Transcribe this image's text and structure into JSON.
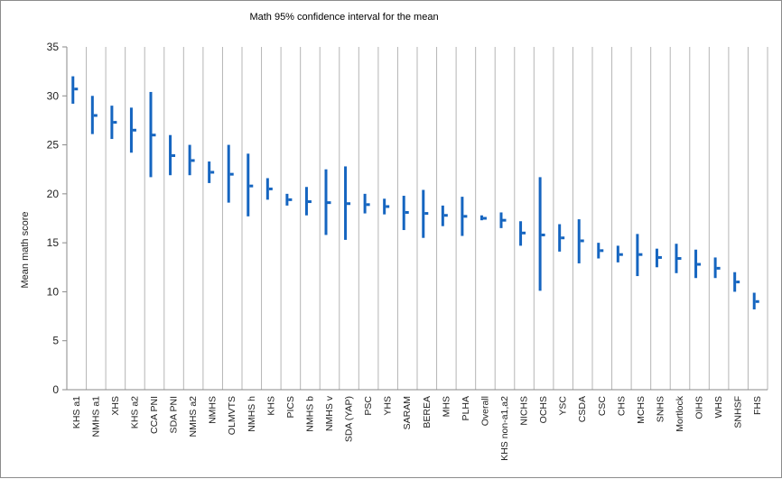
{
  "chart_data": {
    "type": "error-bar",
    "title": "Math 95% confidence interval for the mean",
    "ylabel": "Mean math score",
    "xlabel": "",
    "ylim": [
      0,
      35
    ],
    "yticks": [
      0,
      5,
      10,
      15,
      20,
      25,
      30,
      35
    ],
    "grid": "vertical",
    "categories": [
      "KHS a1",
      "NMHS a1",
      "XHS",
      "KHS a2",
      "CCA PNI",
      "SDA PNI",
      "NMHS a2",
      "NMHS",
      "OLMVTS",
      "NMHS h",
      "KHS",
      "PICS",
      "NMHS b",
      "NMHS v",
      "SDA (YAP)",
      "PSC",
      "YHS",
      "SARAM",
      "BEREA",
      "MHS",
      "PLHA",
      "Overall",
      "KHS non-a1,a2",
      "NICHS",
      "OCHS",
      "YSC",
      "CSDA",
      "CSC",
      "CHS",
      "MCHS",
      "SNHS",
      "Mortlock",
      "OIHS",
      "WHS",
      "SNHSF",
      "FHS"
    ],
    "series": [
      {
        "name": "",
        "low": [
          29.2,
          26.1,
          25.6,
          24.2,
          21.7,
          21.9,
          21.9,
          21.1,
          19.1,
          17.7,
          19.4,
          18.8,
          17.8,
          15.8,
          15.3,
          18.0,
          17.9,
          16.3,
          15.5,
          16.7,
          15.7,
          17.3,
          16.5,
          14.7,
          10.1,
          14.1,
          12.9,
          13.4,
          13.0,
          11.6,
          12.5,
          11.9,
          11.4,
          11.4,
          10.0,
          8.2
        ],
        "high": [
          32.0,
          30.0,
          29.0,
          28.8,
          30.4,
          26.0,
          25.0,
          23.3,
          25.0,
          24.1,
          21.6,
          20.0,
          20.7,
          22.5,
          22.8,
          20.0,
          19.5,
          19.8,
          20.4,
          18.8,
          19.7,
          17.8,
          18.1,
          17.2,
          21.7,
          16.9,
          17.4,
          15.0,
          14.7,
          15.9,
          14.4,
          14.9,
          14.3,
          13.5,
          12.0,
          9.9
        ],
        "mean": [
          30.7,
          28.0,
          27.3,
          26.5,
          26.0,
          23.9,
          23.4,
          22.2,
          22.0,
          20.8,
          20.5,
          19.4,
          19.2,
          19.1,
          19.0,
          18.9,
          18.7,
          18.1,
          18.0,
          17.8,
          17.7,
          17.5,
          17.3,
          16.0,
          15.8,
          15.5,
          15.2,
          14.2,
          13.8,
          13.8,
          13.5,
          13.4,
          12.8,
          12.4,
          11.0,
          9.0
        ]
      }
    ],
    "color": "#1565c0"
  }
}
